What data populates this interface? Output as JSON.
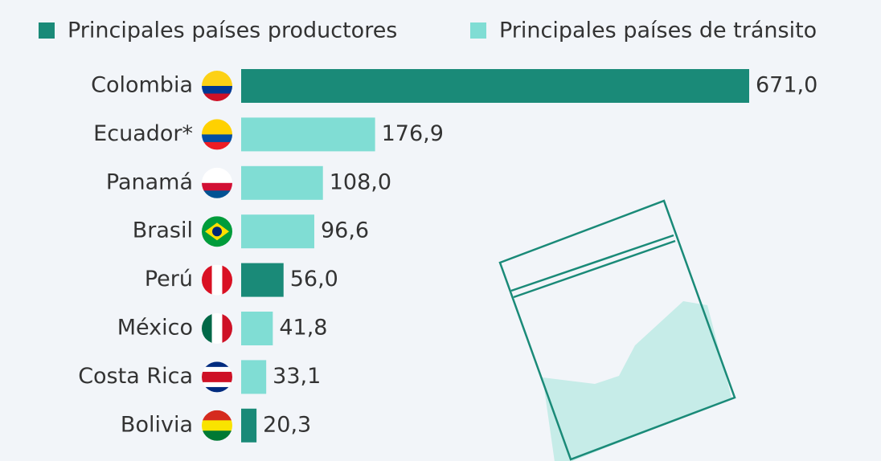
{
  "chart_data": {
    "type": "hbar",
    "categories": [
      "Colombia",
      "Ecuador*",
      "Panamá",
      "Brasil",
      "Perú",
      "México",
      "Costa Rica",
      "Bolivia"
    ],
    "series": [
      {
        "name": "Principales países productores",
        "color": "#1a8a78",
        "values": [
          671.0,
          null,
          null,
          null,
          56.0,
          null,
          null,
          20.3
        ],
        "value_labels": [
          "671,0",
          null,
          null,
          null,
          "56,0",
          null,
          null,
          "20,3"
        ]
      },
      {
        "name": "Principales países de tránsito",
        "color": "#80ddd4",
        "values": [
          null,
          176.9,
          108.0,
          96.6,
          null,
          41.8,
          33.1,
          null
        ],
        "value_labels": [
          null,
          "176,9",
          "108,0",
          "96,6",
          null,
          "41,8",
          "33,1",
          null
        ]
      }
    ]
  }
}
